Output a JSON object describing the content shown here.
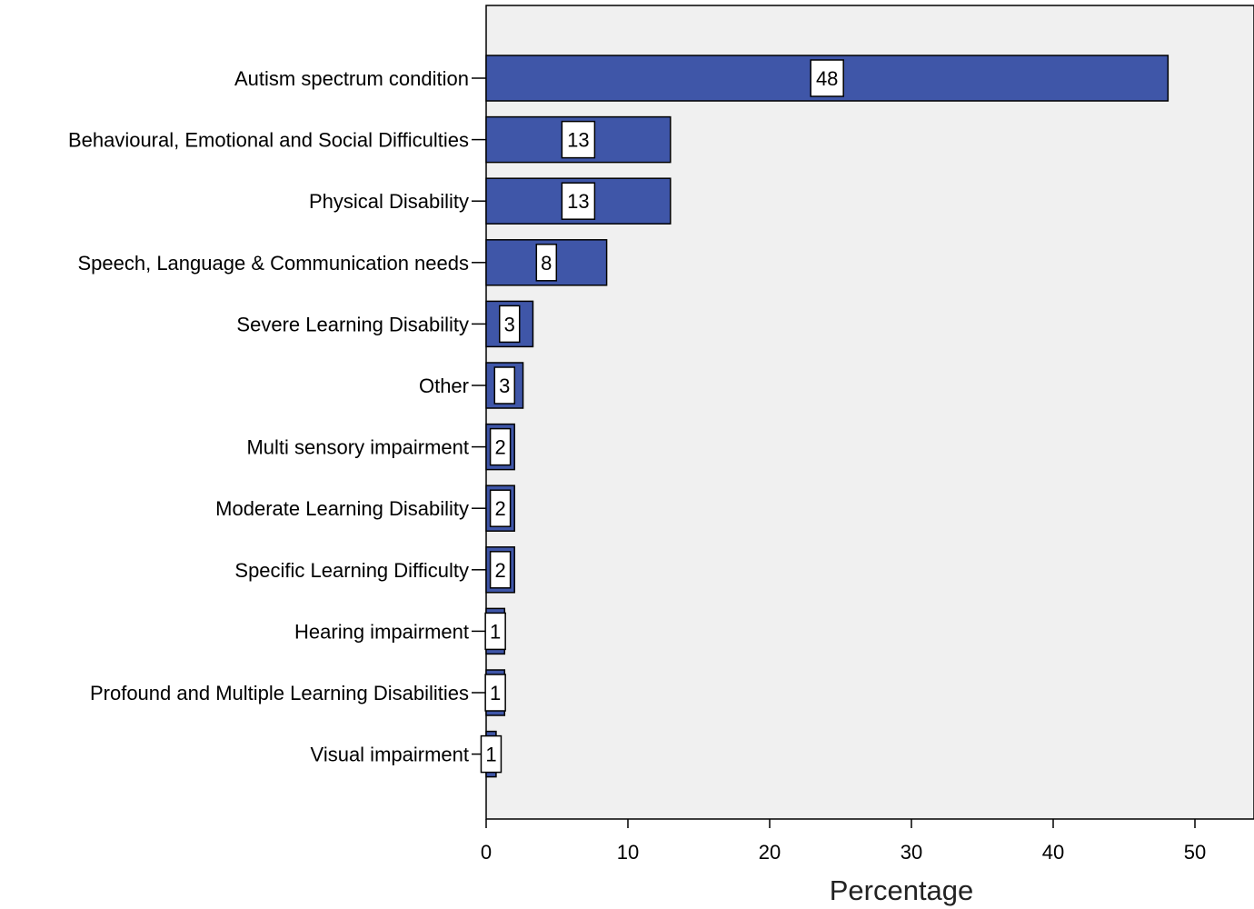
{
  "chart_data": {
    "type": "bar",
    "orientation": "horizontal",
    "categories": [
      "Autism spectrum condition",
      "Behavioural, Emotional and Social Difficulties",
      "Physical Disability",
      "Speech, Language & Communication needs",
      "Severe Learning Disability",
      "Other",
      "Multi sensory impairment",
      "Moderate Learning Disability",
      "Specific Learning Difficulty",
      "Hearing impairment",
      "Profound and Multiple Learning Disabilities",
      "Visual impairment"
    ],
    "values": [
      48.1,
      13.0,
      13.0,
      8.5,
      3.3,
      2.6,
      2.0,
      2.0,
      2.0,
      1.3,
      1.3,
      0.7
    ],
    "data_labels": [
      "48",
      "13",
      "13",
      "8",
      "3",
      "3",
      "2",
      "2",
      "2",
      "1",
      "1",
      "1"
    ],
    "xlabel": "Percentage",
    "ylabel": "",
    "xlim": [
      0,
      54
    ],
    "xticks": [
      0,
      10,
      20,
      30,
      40,
      50
    ],
    "tick_labels": [
      "0",
      "10",
      "20",
      "30",
      "40",
      "50"
    ],
    "grid": false,
    "legend": "none",
    "colors": {
      "bar": "#3f56a8",
      "plot_background": "#f0f0f0",
      "label_box": "#ffffff"
    }
  }
}
